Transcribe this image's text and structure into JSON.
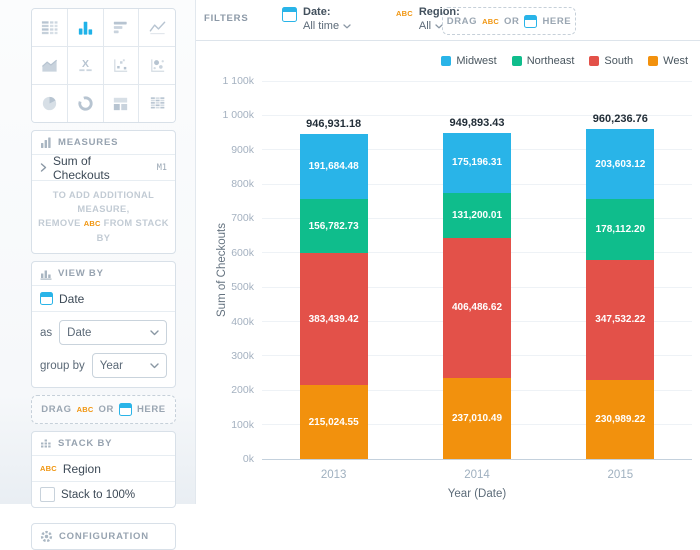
{
  "sidebar": {
    "chart_picker": {
      "types": [
        {
          "name": "data-table",
          "selected": false
        },
        {
          "name": "bar-chart",
          "selected": true
        },
        {
          "name": "horizontal-bar-chart",
          "selected": false
        },
        {
          "name": "line-chart",
          "selected": false
        },
        {
          "name": "area-chart",
          "selected": false
        },
        {
          "name": "x-label-chart",
          "selected": false
        },
        {
          "name": "scatter-plot",
          "selected": false
        },
        {
          "name": "bubble-chart",
          "selected": false
        },
        {
          "name": "pie-chart",
          "selected": false
        },
        {
          "name": "donut-chart",
          "selected": false
        },
        {
          "name": "treemap",
          "selected": false
        },
        {
          "name": "pivot-table",
          "selected": false
        }
      ]
    },
    "measures": {
      "title": "MEASURES",
      "item": {
        "label": "Sum of Checkouts",
        "badge": "M1"
      },
      "note_line1": "TO ADD ADDITIONAL MEASURE,",
      "note_remove": "REMOVE",
      "note_abc": "ABC",
      "note_line2_end": "FROM STACK BY"
    },
    "view_by": {
      "title": "VIEW BY",
      "field": "Date",
      "as_label": "as",
      "as_value": "Date",
      "group_by_label": "group by",
      "group_by_value": "Year",
      "drop": {
        "drag": "DRAG",
        "abc": "ABC",
        "or": "OR",
        "here": "HERE"
      }
    },
    "stack_by": {
      "title": "STACK BY",
      "abc": "ABC",
      "field": "Region",
      "stack_checkbox_label": "Stack to 100%",
      "stack_checked": false
    },
    "configuration": {
      "title": "CONFIGURATION"
    }
  },
  "filter_bar": {
    "label": "FILTERS",
    "date_filter": {
      "name": "Date:",
      "value": "All time"
    },
    "region_filter": {
      "abc": "ABC",
      "name": "Region:",
      "value": "All"
    },
    "drop": {
      "drag": "DRAG",
      "abc": "ABC",
      "or": "OR",
      "here": "HERE"
    }
  },
  "chart_data": {
    "type": "bar",
    "stacked": true,
    "categories": [
      "2013",
      "2014",
      "2015"
    ],
    "series": [
      {
        "name": "West",
        "color": "#F2910D",
        "values": [
          215024.55,
          237010.49,
          230989.22
        ]
      },
      {
        "name": "South",
        "color": "#E35149",
        "values": [
          383439.42,
          406486.62,
          347532.22
        ]
      },
      {
        "name": "Northeast",
        "color": "#0FBD8C",
        "values": [
          156782.73,
          131200.01,
          178112.2
        ]
      },
      {
        "name": "Midwest",
        "color": "#29B4E8",
        "values": [
          191684.48,
          175196.31,
          203603.12
        ]
      }
    ],
    "totals": [
      946931.18,
      949893.43,
      960236.76
    ],
    "xlabel": "Year (Date)",
    "ylabel": "Sum of Checkouts",
    "ylim": [
      0,
      1100000
    ],
    "ytick_step": 100000,
    "ytick_labels": [
      "0k",
      "100k",
      "200k",
      "300k",
      "400k",
      "500k",
      "600k",
      "700k",
      "800k",
      "900k",
      "1 000k",
      "1 100k"
    ],
    "legend_order": [
      "Midwest",
      "Northeast",
      "South",
      "West"
    ],
    "legend_position": "top-right",
    "grid": true
  }
}
